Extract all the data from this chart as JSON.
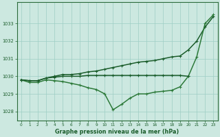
{
  "xlabel": "Graphe pression niveau de la mer (hPa)",
  "xlim": [
    -0.5,
    23.5
  ],
  "ylim": [
    1027.5,
    1034.2
  ],
  "yticks": [
    1028,
    1029,
    1030,
    1031,
    1032,
    1033
  ],
  "xticks": [
    0,
    1,
    2,
    3,
    4,
    5,
    6,
    7,
    8,
    9,
    10,
    11,
    12,
    13,
    14,
    15,
    16,
    17,
    18,
    19,
    20,
    21,
    22,
    23
  ],
  "background_color": "#cce8e0",
  "grid_color": "#9ecec4",
  "series": [
    {
      "x": [
        0,
        1,
        2,
        3,
        4,
        5,
        6,
        7,
        8,
        9,
        10,
        11,
        12,
        13,
        14,
        15,
        16,
        17,
        18,
        19,
        20,
        21,
        22,
        23
      ],
      "y": [
        1029.8,
        1029.75,
        1029.75,
        1029.9,
        1030.0,
        1030.1,
        1030.1,
        1030.15,
        1030.25,
        1030.3,
        1030.4,
        1030.5,
        1030.6,
        1030.7,
        1030.8,
        1030.85,
        1030.9,
        1031.0,
        1031.1,
        1031.15,
        1031.5,
        1032.0,
        1032.8,
        1033.4
      ],
      "color": "#1a5c2a",
      "lw": 1.1,
      "marker_size": 2.5
    },
    {
      "x": [
        0,
        1,
        2,
        3,
        4,
        5,
        6,
        7,
        8,
        9,
        10,
        11,
        12,
        13,
        14,
        15,
        16,
        17,
        18,
        19,
        20,
        21,
        22,
        23
      ],
      "y": [
        1029.8,
        1029.65,
        1029.65,
        1029.8,
        1029.75,
        1029.7,
        1029.6,
        1029.5,
        1029.35,
        1029.25,
        1029.0,
        1028.1,
        1028.4,
        1028.75,
        1029.0,
        1029.0,
        1029.1,
        1029.15,
        1029.2,
        1029.4,
        1030.0,
        1031.1,
        1033.0,
        1033.5
      ],
      "color": "#2d7a3a",
      "lw": 1.1,
      "marker_size": 2.5
    },
    {
      "x": [
        0,
        1,
        2,
        3,
        4,
        5,
        6,
        7,
        8,
        9,
        10,
        11,
        12,
        13,
        14,
        15,
        16,
        17,
        18,
        19,
        20
      ],
      "y": [
        1029.8,
        1029.75,
        1029.75,
        1029.9,
        1029.95,
        1030.0,
        1030.0,
        1030.0,
        1030.05,
        1030.05,
        1030.05,
        1030.05,
        1030.05,
        1030.05,
        1030.05,
        1030.05,
        1030.05,
        1030.05,
        1030.05,
        1030.05,
        1030.0
      ],
      "color": "#1a5c2a",
      "lw": 1.1,
      "marker_size": 2.5
    }
  ]
}
